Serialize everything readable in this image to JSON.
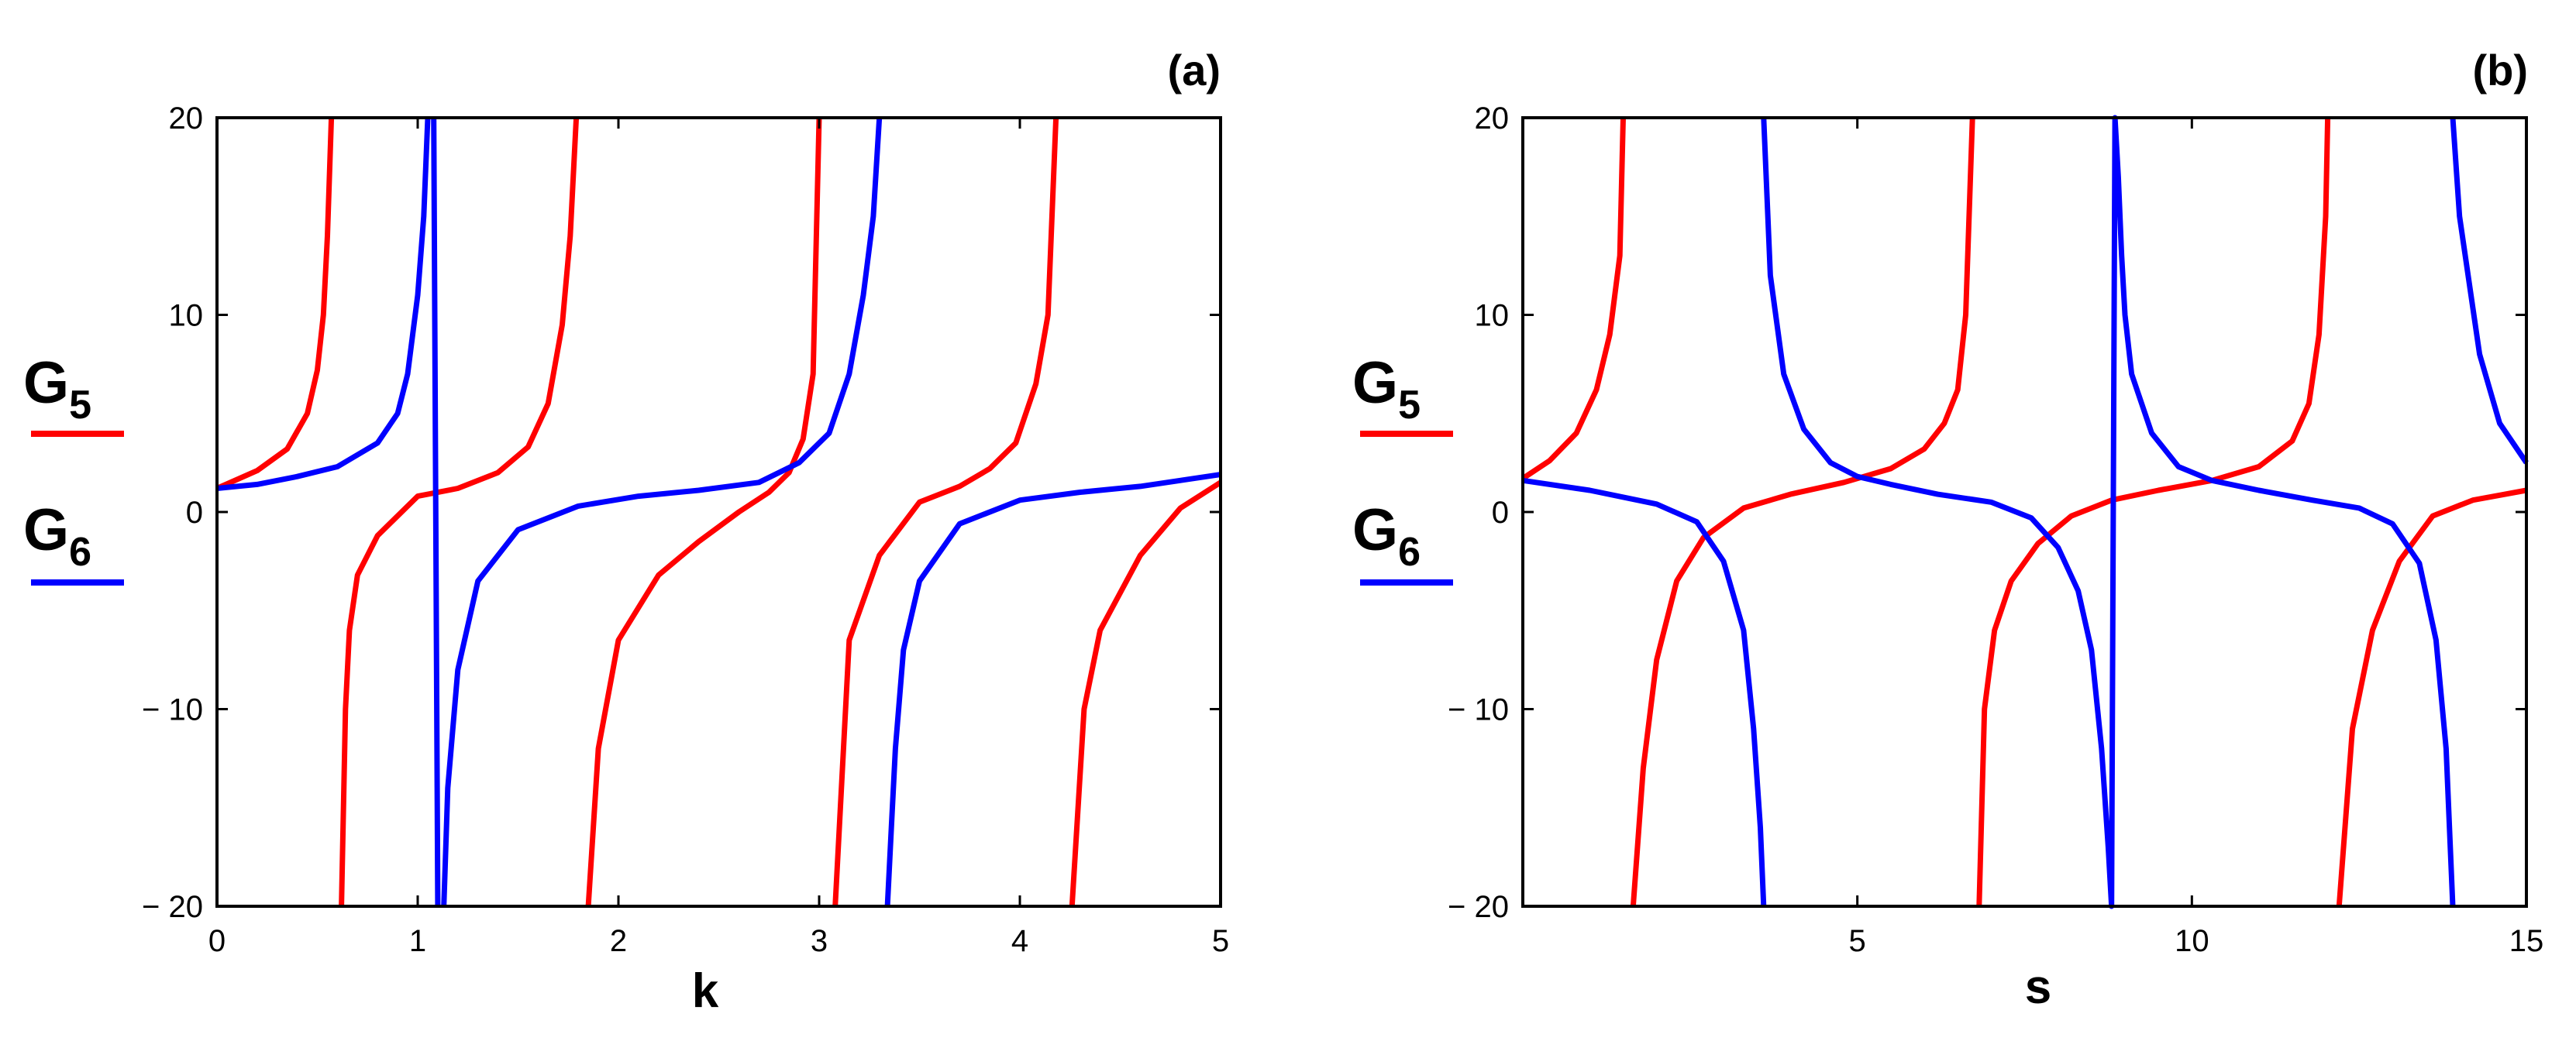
{
  "chart_data": [
    {
      "type": "line",
      "panel_label": "(a)",
      "xlabel": "k",
      "ylabel": "",
      "xlim": [
        0,
        5
      ],
      "ylim": [
        -20,
        20
      ],
      "x_ticks": [
        "0",
        "1",
        "2",
        "3",
        "4",
        "5"
      ],
      "x_tick_values": [
        0,
        1,
        2,
        3,
        4,
        5
      ],
      "y_ticks": [
        "20",
        "10",
        "0",
        "− 10",
        "− 20"
      ],
      "y_tick_values": [
        20,
        10,
        0,
        -10,
        -20
      ],
      "grid": false,
      "legend": {
        "placement": "left-outside",
        "entries": [
          {
            "name": "G",
            "subscript": "5",
            "color": "#ff0000"
          },
          {
            "name": "G",
            "subscript": "6",
            "color": "#0000ff"
          }
        ]
      },
      "series": [
        {
          "name": "G5",
          "color": "#ff0000",
          "x": [
            0,
            0.2,
            0.35,
            0.45,
            0.5,
            0.53,
            0.55,
            0.57,
            0.58,
            0.62,
            0.64,
            0.66,
            0.7,
            0.8,
            1.0,
            1.2,
            1.4,
            1.55,
            1.65,
            1.72,
            1.76,
            1.79,
            1.82,
            1.85,
            1.9,
            2.0,
            2.2,
            2.4,
            2.6,
            2.75,
            2.85,
            2.92,
            2.97,
            3.0,
            3.03,
            3.08,
            3.15,
            3.3,
            3.5,
            3.7,
            3.85,
            3.98,
            4.08,
            4.14,
            4.18,
            4.21,
            4.26,
            4.32,
            4.4,
            4.6,
            4.8,
            5.0
          ],
          "y": [
            1.2,
            2.1,
            3.2,
            5.0,
            7.2,
            10,
            14,
            20,
            null,
            -20,
            -10,
            -6,
            -3.2,
            -1.2,
            0.8,
            1.2,
            2.0,
            3.3,
            5.5,
            9.5,
            14,
            20,
            null,
            -20,
            -12,
            -6.5,
            -3.2,
            -1.5,
            0,
            1.0,
            2.0,
            3.7,
            7,
            20,
            null,
            -20,
            -6.5,
            -2.2,
            0.5,
            1.3,
            2.2,
            3.5,
            6.5,
            10,
            20,
            null,
            -20,
            -10,
            -6,
            -2.2,
            0.2,
            1.5
          ]
        },
        {
          "name": "G6",
          "color": "#0000ff",
          "x": [
            0,
            0.2,
            0.4,
            0.6,
            0.8,
            0.9,
            0.95,
            1.0,
            1.03,
            1.05,
            1.07,
            1.08,
            1.1,
            1.12,
            1.13,
            1.15,
            1.2,
            1.3,
            1.5,
            1.8,
            2.1,
            2.4,
            2.7,
            2.9,
            3.05,
            3.15,
            3.22,
            3.27,
            3.3,
            3.32,
            3.34,
            3.36,
            3.38,
            3.42,
            3.5,
            3.7,
            4.0,
            4.3,
            4.6,
            5.0
          ],
          "y": [
            1.2,
            1.4,
            1.8,
            2.3,
            3.5,
            5,
            7,
            11,
            15,
            20,
            null,
            20,
            -20,
            null,
            -20,
            -14,
            -8,
            -3.5,
            -0.9,
            0.3,
            0.8,
            1.1,
            1.5,
            2.5,
            4,
            7,
            11,
            15,
            20,
            null,
            -20,
            -16,
            -12,
            -7,
            -3.5,
            -0.6,
            0.6,
            1.0,
            1.3,
            1.9
          ]
        }
      ]
    },
    {
      "type": "line",
      "panel_label": "(b)",
      "xlabel": "s",
      "ylabel": "",
      "xlim": [
        0,
        15
      ],
      "ylim": [
        -20,
        20
      ],
      "x_ticks": [
        "5",
        "10",
        "15"
      ],
      "x_tick_values": [
        5,
        10,
        15
      ],
      "y_ticks": [
        "20",
        "10",
        "0",
        "− 10",
        "− 20"
      ],
      "y_tick_values": [
        20,
        10,
        0,
        -10,
        -20
      ],
      "grid": false,
      "legend": {
        "placement": "left-outside",
        "entries": [
          {
            "name": "G",
            "subscript": "5",
            "color": "#ff0000"
          },
          {
            "name": "G",
            "subscript": "6",
            "color": "#0000ff"
          }
        ]
      },
      "series": [
        {
          "name": "G5",
          "color": "#ff0000",
          "x": [
            0,
            0.4,
            0.8,
            1.1,
            1.3,
            1.45,
            1.5,
            1.55,
            1.65,
            1.8,
            2.0,
            2.3,
            2.7,
            3.3,
            4.0,
            4.8,
            5.5,
            6.0,
            6.3,
            6.5,
            6.62,
            6.72,
            6.78,
            6.82,
            6.9,
            7.05,
            7.3,
            7.7,
            8.2,
            8.8,
            9.5,
            10.3,
            11.0,
            11.5,
            11.75,
            11.9,
            12.0,
            12.03,
            12.08,
            12.2,
            12.4,
            12.7,
            13.1,
            13.6,
            14.2,
            15.0
          ],
          "y": [
            1.7,
            2.6,
            4.0,
            6.2,
            9.0,
            13,
            20,
            null,
            -20,
            -13,
            -7.5,
            -3.5,
            -1.3,
            0.2,
            0.9,
            1.5,
            2.2,
            3.2,
            4.5,
            6.2,
            10,
            20,
            null,
            -20,
            -10,
            -6,
            -3.5,
            -1.6,
            -0.2,
            0.6,
            1.1,
            1.6,
            2.3,
            3.6,
            5.5,
            9,
            15,
            20,
            null,
            -20,
            -11,
            -6,
            -2.5,
            -0.2,
            0.6,
            1.1
          ]
        },
        {
          "name": "G6",
          "color": "#0000ff",
          "x": [
            0,
            1.0,
            2.0,
            2.6,
            3.0,
            3.3,
            3.45,
            3.55,
            3.6,
            null,
            3.6,
            3.7,
            3.9,
            4.2,
            4.6,
            5.0,
            5.5,
            6.2,
            7.0,
            7.6,
            8.0,
            8.3,
            8.5,
            8.65,
            8.75,
            8.8,
            8.85,
            8.9,
            8.95,
            9.0,
            9.1,
            9.4,
            9.8,
            10.3,
            11.0,
            11.8,
            12.5,
            13.0,
            13.4,
            13.65,
            13.8,
            13.9,
            null,
            13.9,
            14.0,
            14.3,
            14.6,
            15.0
          ],
          "y": [
            1.6,
            1.1,
            0.4,
            -0.5,
            -2.5,
            -6,
            -11,
            -16,
            -20,
            null,
            20,
            12,
            7,
            4.2,
            2.5,
            1.8,
            1.4,
            0.9,
            0.5,
            -0.3,
            -1.8,
            -4,
            -7,
            -12,
            -17,
            -20,
            20,
            17,
            13,
            10,
            7,
            4,
            2.3,
            1.6,
            1.1,
            0.6,
            0.2,
            -0.6,
            -2.6,
            -6.5,
            -12,
            -20,
            null,
            20,
            15,
            8,
            4.5,
            2.5
          ]
        }
      ]
    }
  ]
}
